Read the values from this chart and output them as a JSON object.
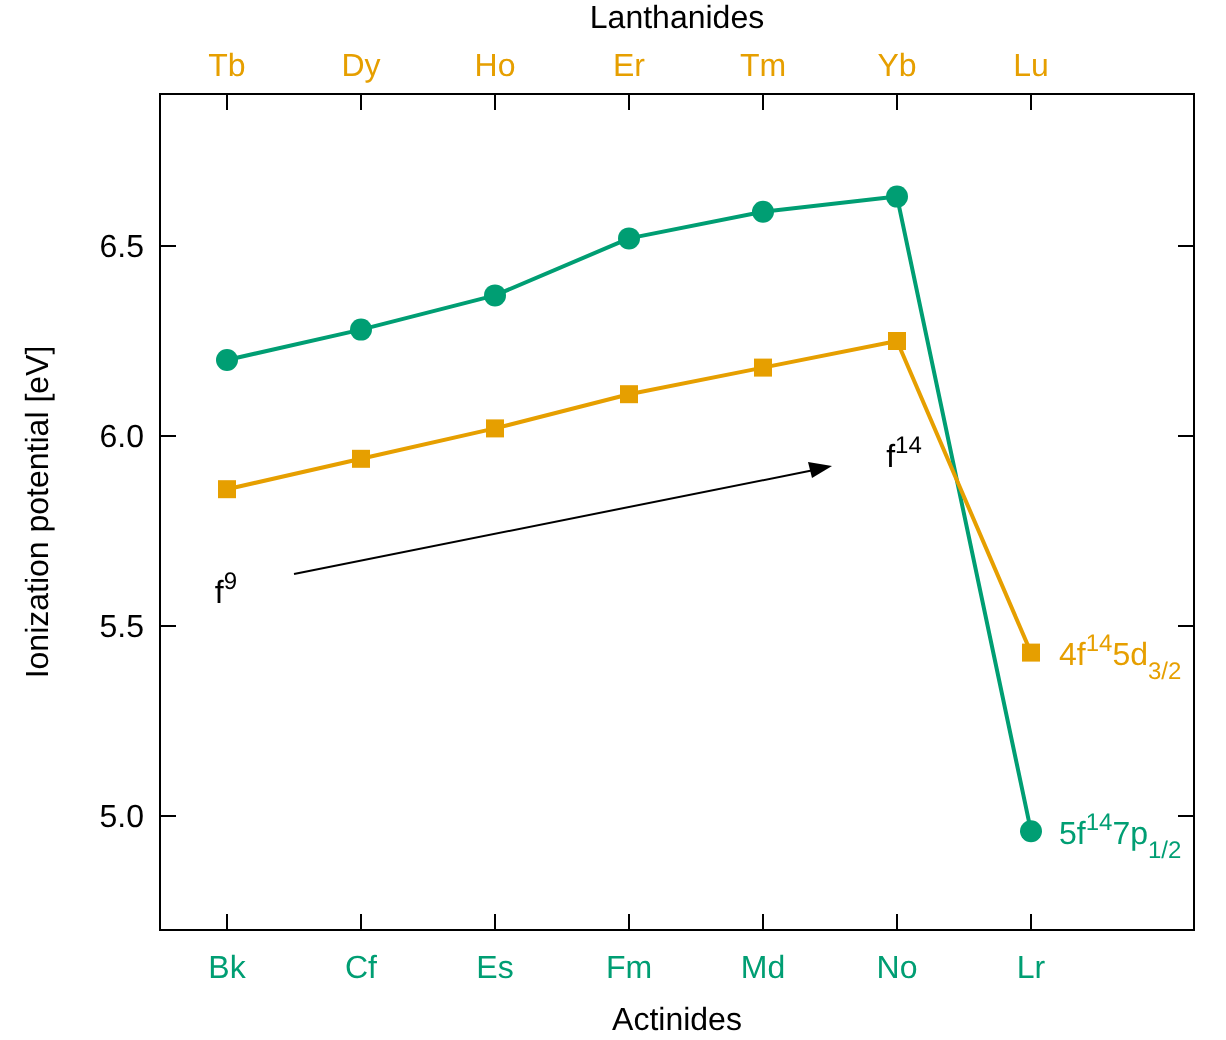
{
  "chart_data": [
    {
      "type": "line",
      "xlabel": "Actinides",
      "ylabel": "Ionization potential [eV]",
      "categories": [
        "Bk",
        "Cf",
        "Es",
        "Fm",
        "Md",
        "No",
        "Lr"
      ],
      "ylim": [
        4.7,
        6.9
      ],
      "yticks": [
        {
          "value": 5,
          "label": "5.0"
        },
        {
          "value": 5.5,
          "label": "5.5"
        },
        {
          "value": 6,
          "label": "6.0"
        },
        {
          "value": 6.5,
          "label": "6.5"
        }
      ],
      "series": [
        {
          "name": "5f$^{14}$7p$_{1/2}$",
          "color": "#009e73",
          "marker": "circle",
          "values": [
            6.2,
            6.28,
            6.37,
            6.52,
            6.59,
            6.63,
            4.96
          ]
        }
      ],
      "annotations": [
        "f$^{9}$",
        "f$^{14}$"
      ]
    },
    {
      "type": "line",
      "x2label": "Lanthanides",
      "categories": [
        "Tb",
        "Dy",
        "Ho",
        "Er",
        "Tm",
        "Yb",
        "Lu"
      ],
      "ylim": [
        4.7,
        6.9
      ],
      "tick_labels": "x",
      "series": [
        {
          "name": "4f$^{14}$5d$_{3/2}$",
          "color": "#e69f00",
          "marker": "square",
          "values": [
            5.86,
            5.94,
            6.02,
            6.11,
            6.18,
            6.25,
            5.43
          ]
        }
      ]
    }
  ]
}
